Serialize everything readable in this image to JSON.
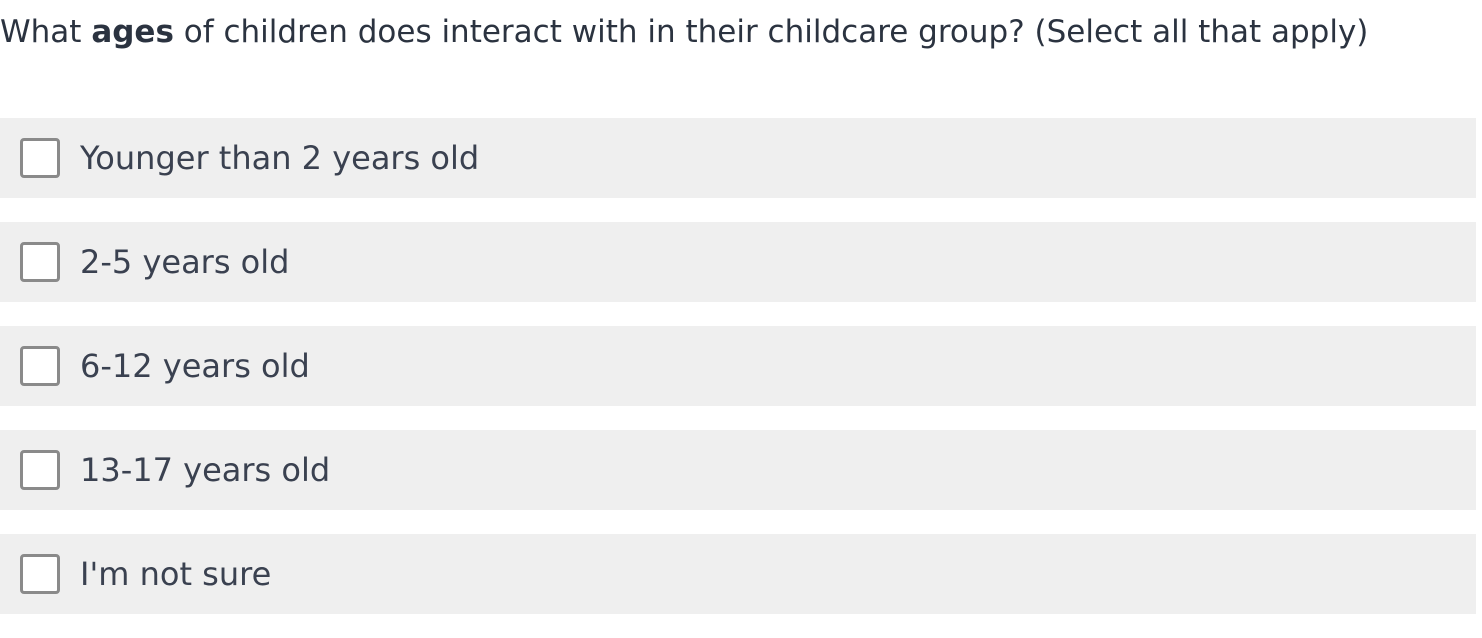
{
  "question": {
    "prefix": "What ",
    "emphasis": "ages",
    "suffix": " of children does interact with in their childcare group? (Select all that apply)"
  },
  "options": [
    {
      "label": "Younger than 2 years old",
      "checked": false
    },
    {
      "label": "2-5 years old",
      "checked": false
    },
    {
      "label": "6-12 years old",
      "checked": false
    },
    {
      "label": "13-17 years old",
      "checked": false
    },
    {
      "label": "I'm not sure",
      "checked": false
    }
  ],
  "colors": {
    "question_text": "#2b3340",
    "option_background": "#efefef",
    "checkbox_border": "#8a8a8a",
    "option_text": "#3a4150"
  }
}
